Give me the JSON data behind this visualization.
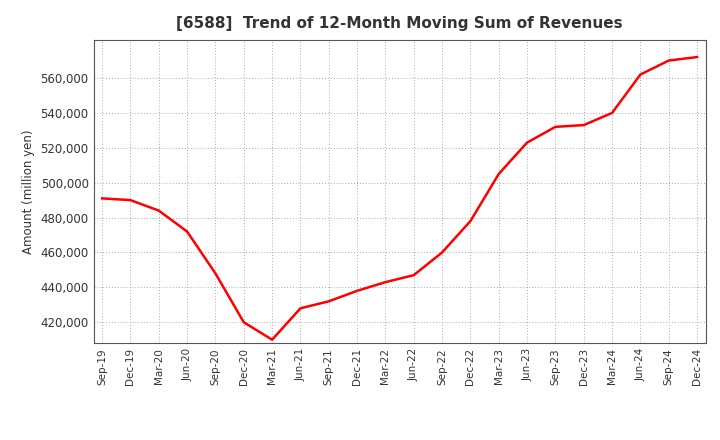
{
  "title": "[6588]  Trend of 12-Month Moving Sum of Revenues",
  "ylabel": "Amount (million yen)",
  "line_color": "#FF0000",
  "line_width": 1.8,
  "background_color": "#FFFFFF",
  "plot_bg_color": "#FFFFFF",
  "grid_color": "#AAAAAA",
  "title_color": "#333333",
  "ylim": [
    408000,
    582000
  ],
  "yticks": [
    420000,
    440000,
    460000,
    480000,
    500000,
    520000,
    540000,
    560000
  ],
  "x_labels": [
    "Sep-19",
    "Dec-19",
    "Mar-20",
    "Jun-20",
    "Sep-20",
    "Dec-20",
    "Mar-21",
    "Jun-21",
    "Sep-21",
    "Dec-21",
    "Mar-22",
    "Jun-22",
    "Sep-22",
    "Dec-22",
    "Mar-23",
    "Jun-23",
    "Sep-23",
    "Dec-23",
    "Mar-24",
    "Jun-24",
    "Sep-24",
    "Dec-24"
  ],
  "values": [
    491000,
    490000,
    484000,
    472000,
    448000,
    420000,
    410000,
    428000,
    432000,
    438000,
    443000,
    447000,
    460000,
    478000,
    505000,
    523000,
    532000,
    533000,
    540000,
    562000,
    570000,
    572000
  ]
}
